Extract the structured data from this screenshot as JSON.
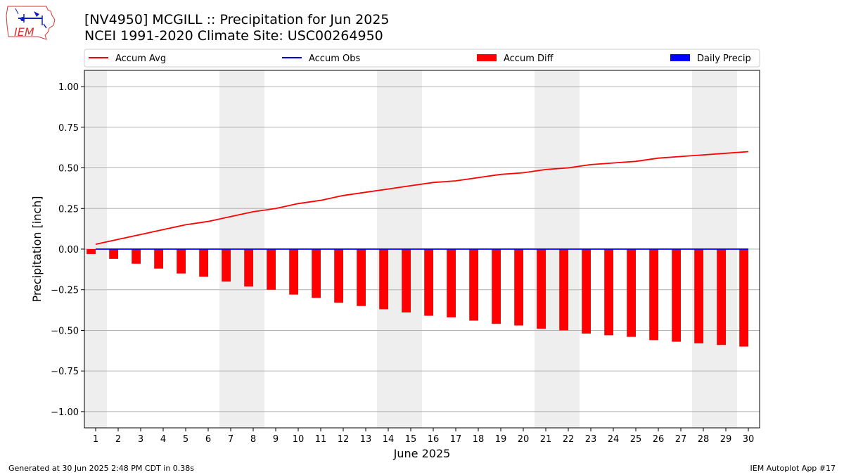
{
  "header": {
    "title_line1": "[NV4950] MCGILL :: Precipitation for Jun 2025",
    "title_line2": "NCEI 1991-2020 Climate Site: USC00264950"
  },
  "logo": {
    "text": "IEM",
    "icon": "iem-logo-icon"
  },
  "footer": {
    "generated": "Generated at 30 Jun 2025 2:48 PM CDT in 0.38s",
    "app": "IEM Autoplot App #17"
  },
  "colors": {
    "accum_avg": "#ff0000",
    "accum_obs": "#0000ff",
    "accum_diff": "#ff0000",
    "daily_precip": "#0000ff",
    "weekend_shade": "#eeeeee",
    "grid": "#b0b0b0"
  },
  "chart_data": {
    "type": "bar",
    "xlabel": "June 2025",
    "ylabel": "Precipitation [inch]",
    "ylim": [
      -1.1,
      1.1
    ],
    "yticks": [
      -1.0,
      -0.75,
      -0.5,
      -0.25,
      0.0,
      0.25,
      0.5,
      0.75,
      1.0
    ],
    "ytick_labels": [
      "−1.00",
      "−0.75",
      "−0.50",
      "−0.25",
      "0.00",
      "0.25",
      "0.50",
      "0.75",
      "1.00"
    ],
    "x": [
      1,
      2,
      3,
      4,
      5,
      6,
      7,
      8,
      9,
      10,
      11,
      12,
      13,
      14,
      15,
      16,
      17,
      18,
      19,
      20,
      21,
      22,
      23,
      24,
      25,
      26,
      27,
      28,
      29,
      30
    ],
    "x_tick_labels": [
      "1",
      "2",
      "3",
      "4",
      "5",
      "6",
      "7",
      "8",
      "9",
      "10",
      "11",
      "12",
      "13",
      "14",
      "15",
      "16",
      "17",
      "18",
      "19",
      "20",
      "21",
      "22",
      "23",
      "24",
      "25",
      "26",
      "27",
      "28",
      "29",
      "30"
    ],
    "weekend_days": [
      1,
      7,
      8,
      14,
      15,
      21,
      22,
      28,
      29
    ],
    "grid": "horizontal",
    "legend": {
      "placement": "top",
      "entries": [
        {
          "label": "Accum Avg",
          "kind": "line",
          "color": "#ff0000"
        },
        {
          "label": "Accum Obs",
          "kind": "line",
          "color": "#0000ff"
        },
        {
          "label": "Accum Diff",
          "kind": "bar",
          "color": "#ff0000"
        },
        {
          "label": "Daily Precip",
          "kind": "bar",
          "color": "#0000ff"
        }
      ]
    },
    "series": [
      {
        "name": "Accum Avg",
        "kind": "line",
        "values": [
          0.03,
          0.06,
          0.09,
          0.12,
          0.15,
          0.17,
          0.2,
          0.23,
          0.25,
          0.28,
          0.3,
          0.33,
          0.35,
          0.37,
          0.39,
          0.41,
          0.42,
          0.44,
          0.46,
          0.47,
          0.49,
          0.5,
          0.52,
          0.53,
          0.54,
          0.56,
          0.57,
          0.58,
          0.59,
          0.6
        ]
      },
      {
        "name": "Accum Obs",
        "kind": "line",
        "values": [
          0,
          0,
          0,
          0,
          0,
          0,
          0,
          0,
          0,
          0,
          0,
          0,
          0,
          0,
          0,
          0,
          0,
          0,
          0,
          0,
          0,
          0,
          0,
          0,
          0,
          0,
          0,
          0,
          0,
          0
        ]
      },
      {
        "name": "Accum Diff",
        "kind": "bar",
        "values": [
          -0.03,
          -0.06,
          -0.09,
          -0.12,
          -0.15,
          -0.17,
          -0.2,
          -0.23,
          -0.25,
          -0.28,
          -0.3,
          -0.33,
          -0.35,
          -0.37,
          -0.39,
          -0.41,
          -0.42,
          -0.44,
          -0.46,
          -0.47,
          -0.49,
          -0.5,
          -0.52,
          -0.53,
          -0.54,
          -0.56,
          -0.57,
          -0.58,
          -0.59,
          -0.6
        ]
      },
      {
        "name": "Daily Precip",
        "kind": "bar",
        "values": [
          0,
          0,
          0,
          0,
          0,
          0,
          0,
          0,
          0,
          0,
          0,
          0,
          0,
          0,
          0,
          0,
          0,
          0,
          0,
          0,
          0,
          0,
          0,
          0,
          0,
          0,
          0,
          0,
          0,
          0
        ]
      }
    ]
  }
}
